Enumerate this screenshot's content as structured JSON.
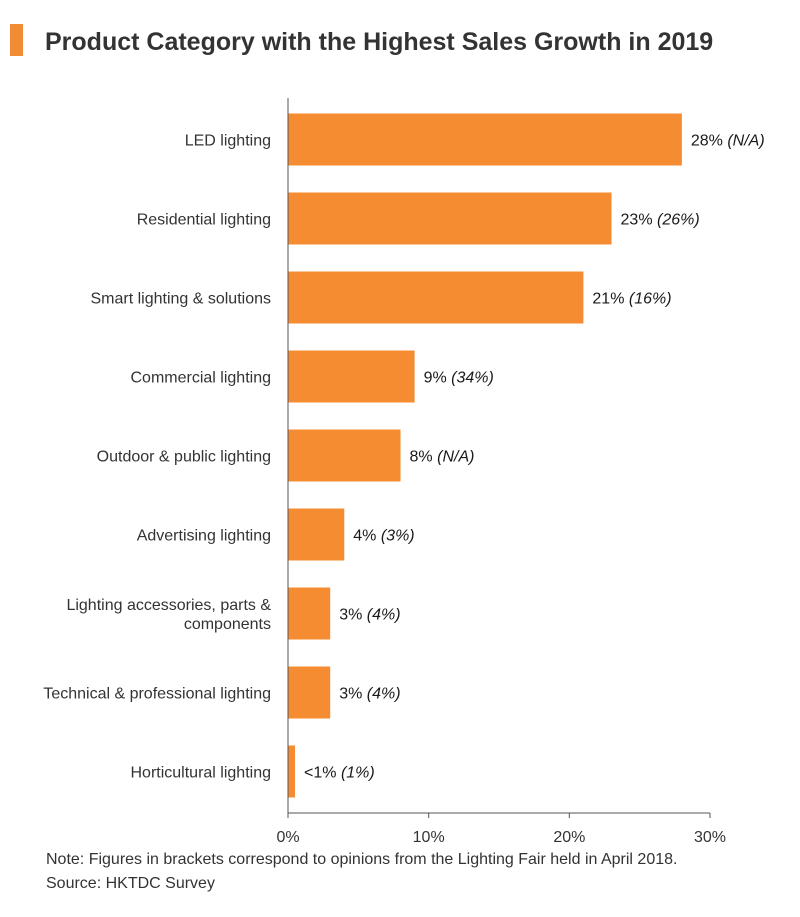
{
  "title": "Product Category with the Highest Sales Growth in 2019",
  "colors": {
    "accent": "#F28C34",
    "bar": "#F58C32",
    "axis": "#555555",
    "text": "#333333"
  },
  "chart_data": {
    "type": "bar",
    "orientation": "horizontal",
    "title": "Product Category with the Highest Sales Growth in 2019",
    "xlabel": "",
    "ylabel": "",
    "xlim": [
      0,
      30
    ],
    "ticks": [
      "0%",
      "10%",
      "20%",
      "30%"
    ],
    "grid": false,
    "categories": [
      [
        "LED lighting"
      ],
      [
        "Residential lighting"
      ],
      [
        "Smart lighting & solutions"
      ],
      [
        "Commercial lighting"
      ],
      [
        "Outdoor & public lighting"
      ],
      [
        "Advertising lighting"
      ],
      [
        "Lighting accessories, parts &",
        "components"
      ],
      [
        "Technical & professional lighting"
      ],
      [
        "Horticultural lighting"
      ]
    ],
    "values": [
      28,
      23,
      21,
      9,
      8,
      4,
      3,
      3,
      0.5
    ],
    "value_labels": [
      "28%",
      "23%",
      "21%",
      "9%",
      "8%",
      "4%",
      "3%",
      "3%",
      "<1%"
    ],
    "bracket_labels": [
      "(N/A)",
      "(26%)",
      "(16%)",
      "(34%)",
      "(N/A)",
      "(3%)",
      "(4%)",
      "(4%)",
      "(1%)"
    ]
  },
  "footnote": {
    "note": "Note: Figures in brackets correspond to opinions from the Lighting Fair held in April 2018.",
    "source": "Source: HKTDC Survey"
  }
}
